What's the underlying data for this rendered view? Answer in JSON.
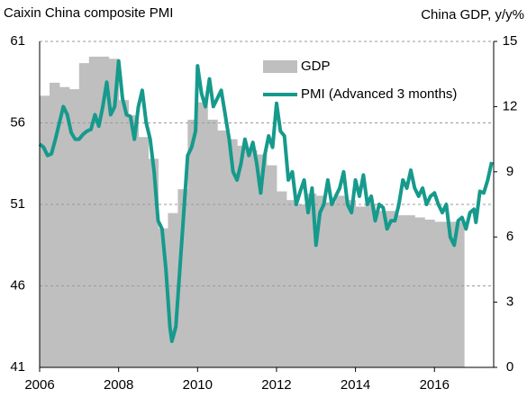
{
  "chart_data": {
    "type": "combo",
    "title": "Caixin China composite PMI",
    "y2_title": "China GDP, y/y%",
    "xlim": [
      2006,
      2017.5
    ],
    "xticks": [
      2006,
      2008,
      2010,
      2012,
      2014,
      2016
    ],
    "ylim": [
      41,
      61
    ],
    "yticks": [
      41,
      46,
      51,
      56,
      61
    ],
    "y2lim": [
      0,
      15
    ],
    "y2ticks": [
      0,
      3,
      6,
      9,
      12,
      15
    ],
    "grid": true,
    "legend": "upper right",
    "series": [
      {
        "name": "GDP",
        "type": "bar",
        "axis": "y2",
        "color": "#bfbfbf",
        "x": [
          2006,
          2006.25,
          2006.5,
          2006.75,
          2007,
          2007.25,
          2007.5,
          2007.75,
          2008,
          2008.25,
          2008.5,
          2008.75,
          2009,
          2009.25,
          2009.5,
          2009.75,
          2010,
          2010.25,
          2010.5,
          2010.75,
          2011,
          2011.25,
          2011.5,
          2011.75,
          2012,
          2012.25,
          2012.5,
          2012.75,
          2013,
          2013.25,
          2013.5,
          2013.75,
          2014,
          2014.25,
          2014.5,
          2014.75,
          2015,
          2015.25,
          2015.5,
          2015.75,
          2016,
          2016.25,
          2016.5
        ],
        "values": [
          12.5,
          13.1,
          12.9,
          12.8,
          14.0,
          14.3,
          14.3,
          14.2,
          12.3,
          11.6,
          10.6,
          9.6,
          6.4,
          7.1,
          8.2,
          11.4,
          12.2,
          11.4,
          10.9,
          10.5,
          10.2,
          10.0,
          9.8,
          9.3,
          8.1,
          7.7,
          7.5,
          8.0,
          7.9,
          7.6,
          7.9,
          7.7,
          7.4,
          7.5,
          7.2,
          7.2,
          7.0,
          7.0,
          6.9,
          6.8,
          6.7,
          6.7,
          6.7
        ]
      },
      {
        "name": "PMI (Advanced 3 months)",
        "type": "line",
        "axis": "y",
        "color": "#169a8c",
        "x": [
          2006,
          2006.1,
          2006.2,
          2006.3,
          2006.4,
          2006.5,
          2006.6,
          2006.7,
          2006.8,
          2006.9,
          2007,
          2007.1,
          2007.2,
          2007.3,
          2007.4,
          2007.5,
          2007.6,
          2007.7,
          2007.8,
          2007.9,
          2008,
          2008.1,
          2008.2,
          2008.3,
          2008.4,
          2008.5,
          2008.6,
          2008.7,
          2008.8,
          2008.9,
          2009,
          2009.1,
          2009.2,
          2009.3,
          2009.35,
          2009.45,
          2009.55,
          2009.65,
          2009.75,
          2009.85,
          2009.95,
          2010,
          2010.1,
          2010.2,
          2010.3,
          2010.4,
          2010.5,
          2010.6,
          2010.7,
          2010.8,
          2010.9,
          2011,
          2011.1,
          2011.2,
          2011.3,
          2011.4,
          2011.5,
          2011.6,
          2011.7,
          2011.8,
          2011.9,
          2012,
          2012.1,
          2012.2,
          2012.3,
          2012.4,
          2012.5,
          2012.6,
          2012.7,
          2012.8,
          2012.9,
          2013,
          2013.1,
          2013.2,
          2013.3,
          2013.4,
          2013.5,
          2013.6,
          2013.7,
          2013.8,
          2013.9,
          2014,
          2014.1,
          2014.2,
          2014.3,
          2014.4,
          2014.5,
          2014.6,
          2014.7,
          2014.8,
          2014.9,
          2015,
          2015.1,
          2015.2,
          2015.3,
          2015.4,
          2015.5,
          2015.6,
          2015.7,
          2015.8,
          2015.9,
          2016,
          2016.1,
          2016.2,
          2016.3,
          2016.4,
          2016.5,
          2016.6,
          2016.7,
          2016.8,
          2016.9,
          2017,
          2017.05,
          2017.15,
          2017.25,
          2017.35,
          2017.45
        ],
        "values": [
          54.7,
          54.5,
          54.0,
          54.1,
          55.0,
          56.0,
          57.0,
          56.5,
          55.4,
          55.0,
          55.0,
          55.3,
          55.5,
          55.6,
          56.5,
          55.8,
          57.0,
          58.5,
          56.5,
          57.0,
          59.8,
          57.5,
          56.5,
          56.4,
          55.0,
          57.0,
          58.0,
          56.0,
          55.0,
          53.0,
          50.0,
          49.5,
          47.0,
          43.5,
          42.6,
          43.5,
          47.0,
          50.5,
          54.0,
          54.5,
          55.5,
          59.5,
          57.8,
          57.0,
          58.7,
          57.0,
          57.5,
          58.0,
          56.5,
          55.0,
          53.0,
          52.5,
          53.5,
          55.0,
          54.0,
          54.8,
          53.5,
          51.7,
          54.0,
          55.2,
          54.5,
          57.2,
          55.5,
          55.2,
          52.5,
          53.0,
          51.0,
          51.8,
          52.5,
          50.5,
          52.0,
          48.5,
          50.5,
          51.0,
          52.5,
          51.0,
          51.5,
          52.0,
          53.0,
          51.0,
          50.5,
          52.5,
          51.5,
          52.8,
          51.0,
          51.5,
          50.0,
          51.0,
          50.8,
          49.5,
          50.0,
          50.0,
          51.0,
          52.5,
          52.0,
          53.1,
          52.0,
          51.5,
          52.0,
          51.0,
          51.5,
          51.7,
          51.0,
          50.5,
          51.0,
          49.0,
          48.5,
          50.0,
          50.2,
          49.5,
          50.5,
          50.7,
          49.9,
          51.8,
          51.7,
          52.5,
          53.6
        ]
      }
    ]
  }
}
